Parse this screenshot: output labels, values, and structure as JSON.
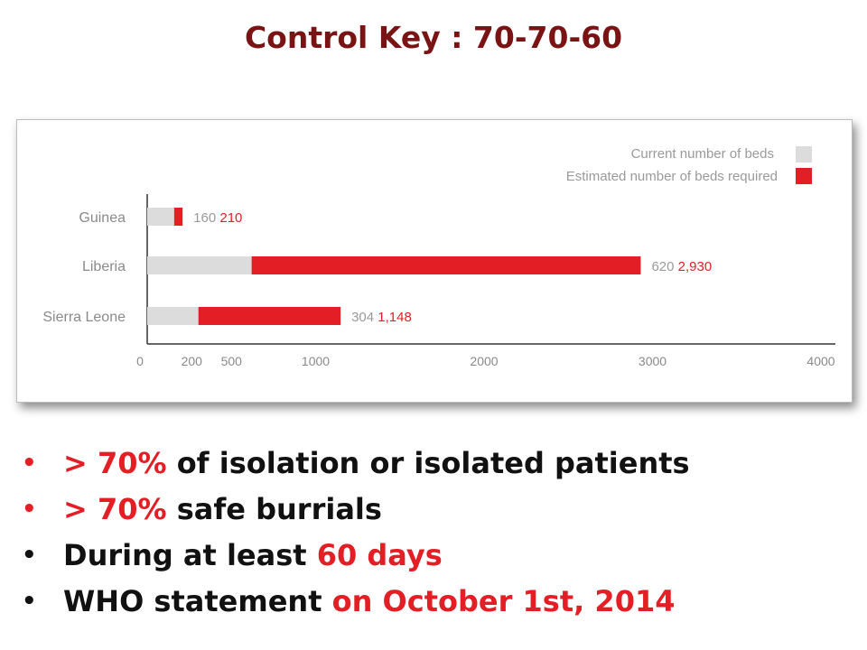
{
  "title": "Control Key : 70-70-60",
  "colors": {
    "current": "#dcdcdc",
    "required": "#e31e24",
    "title": "#7a1414",
    "accent": "#e31e24"
  },
  "chart_data": {
    "type": "bar",
    "orientation": "horizontal",
    "stacked": "overlay",
    "categories": [
      "Guinea",
      "Liberia",
      "Sierra Leone"
    ],
    "series": [
      {
        "name": "Current number of beds",
        "values": [
          160,
          620,
          304
        ],
        "value_labels": [
          "160",
          "620",
          "304"
        ]
      },
      {
        "name": "Estimated number of beds required",
        "values": [
          210,
          2930,
          1148
        ],
        "value_labels": [
          "210",
          "2,930",
          "1,148"
        ]
      }
    ],
    "xticks": [
      "0",
      "200",
      "500",
      "1000",
      "2000",
      "3000",
      "4000"
    ],
    "xlim": [
      0,
      4000
    ],
    "legend": "top-right",
    "grid": false
  },
  "bullets": [
    {
      "bullet": "•",
      "parts": [
        {
          "text": "> 70%",
          "highlight": true
        },
        {
          "text": " of isolation or isolated patients",
          "highlight": false
        }
      ]
    },
    {
      "bullet": "•",
      "parts": [
        {
          "text": "> 70%",
          "highlight": true
        },
        {
          "text": " safe burrials",
          "highlight": false
        }
      ]
    },
    {
      "bullet": "•",
      "parts": [
        {
          "text": "During at least ",
          "highlight": false
        },
        {
          "text": "60 days",
          "highlight": true
        }
      ]
    },
    {
      "bullet": "•",
      "parts": [
        {
          "text": "WHO statement ",
          "highlight": false
        },
        {
          "text": "on October 1st, 2014",
          "highlight": true
        }
      ]
    }
  ]
}
